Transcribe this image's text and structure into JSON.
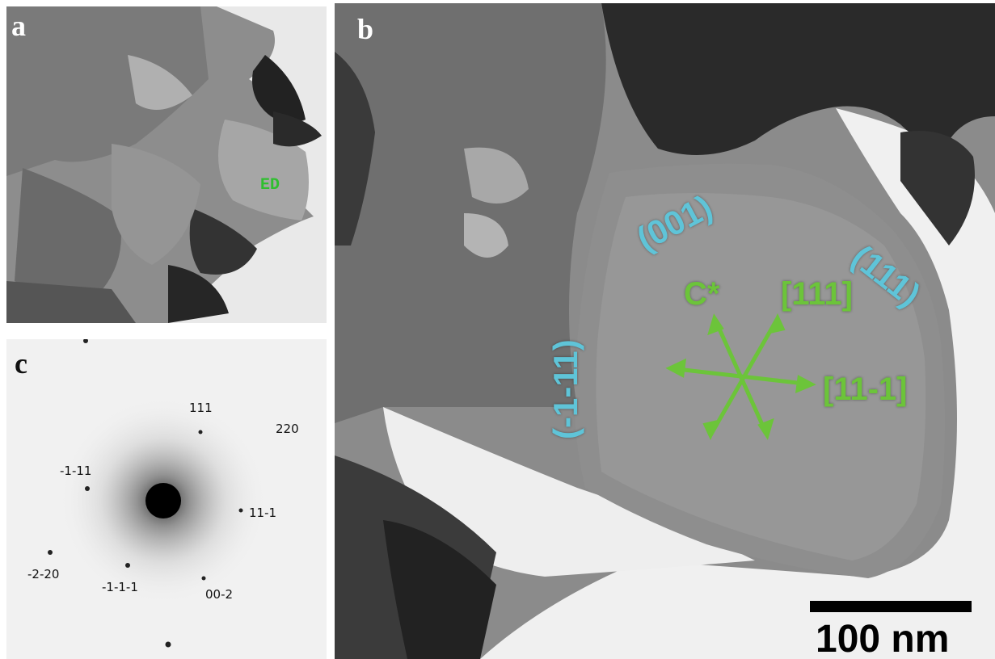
{
  "panel_a": {
    "letter": "a",
    "region_label": "ED"
  },
  "panel_b": {
    "letter": "b",
    "planes": [
      "(001)",
      "(111)",
      "(-1-11)"
    ],
    "directions": [
      "C*",
      "[111]",
      "[11-1]"
    ],
    "scale_bar": "100 nm",
    "colors": {
      "plane": "#5fc4d8",
      "direction": "#6cc43a"
    }
  },
  "panel_c": {
    "letter": "c",
    "spots": [
      "111",
      "220",
      "-1-11",
      "11-1",
      "-2-20",
      "-1-1-1",
      "00-2"
    ]
  }
}
